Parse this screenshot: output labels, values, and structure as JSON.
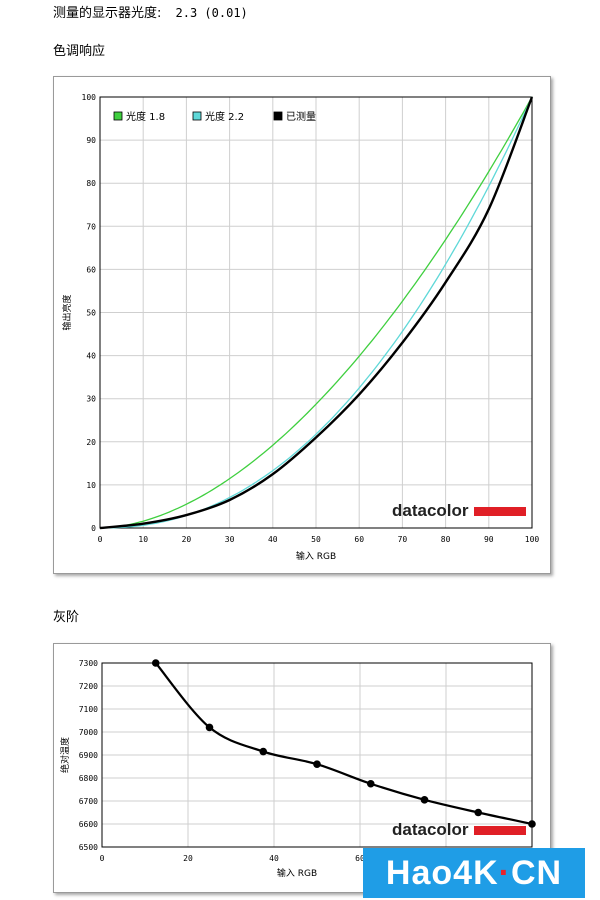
{
  "header": {
    "measured_gamma_label": "测量的显示器光度:",
    "measured_gamma_value": "2.3 (0.01)",
    "gamma_section_title": "色调响应",
    "gray_section_title": "灰阶"
  },
  "logo": {
    "text": "datacolor",
    "bar_color": "#e01f26"
  },
  "watermark": {
    "prefix": "Hao4K",
    "dot": "·",
    "suffix": "CN"
  },
  "chart_data": [
    {
      "type": "line",
      "xlabel": "输入 RGB",
      "ylabel": "输出亮度",
      "xlim": [
        0,
        100
      ],
      "ylim": [
        0,
        100
      ],
      "x_ticks": [
        0,
        10,
        20,
        30,
        40,
        50,
        60,
        70,
        80,
        90,
        100
      ],
      "y_ticks": [
        0,
        10,
        20,
        30,
        40,
        50,
        60,
        70,
        80,
        90,
        100
      ],
      "grid": true,
      "legend_position": "top-left",
      "series": [
        {
          "name": "光度 1.8",
          "color": "#3fcf3f",
          "gamma": 1.8
        },
        {
          "name": "光度 2.2",
          "color": "#5fd8d8",
          "gamma": 2.2
        },
        {
          "name": "已测量",
          "color": "#000000",
          "gamma": 2.3,
          "x": [
            0,
            10,
            20,
            30,
            40,
            50,
            60,
            70,
            80,
            90,
            100
          ],
          "y": [
            0,
            1,
            3,
            6.5,
            12.5,
            21,
            31,
            43,
            57,
            74,
            100
          ]
        }
      ]
    },
    {
      "type": "line",
      "xlabel": "输入 RGB",
      "ylabel": "绝对温度",
      "xlim": [
        0,
        100
      ],
      "ylim": [
        6500,
        7300
      ],
      "x_ticks": [
        0,
        20,
        40,
        60
      ],
      "y_ticks": [
        6500,
        6600,
        6700,
        6800,
        6900,
        7000,
        7100,
        7200,
        7300
      ],
      "grid": true,
      "series": [
        {
          "color": "#000000",
          "x": [
            12.5,
            25,
            37.5,
            50,
            62.5,
            75,
            87.5,
            100
          ],
          "y": [
            7300,
            7020,
            6915,
            6860,
            6775,
            6705,
            6650,
            6600
          ]
        }
      ]
    }
  ]
}
